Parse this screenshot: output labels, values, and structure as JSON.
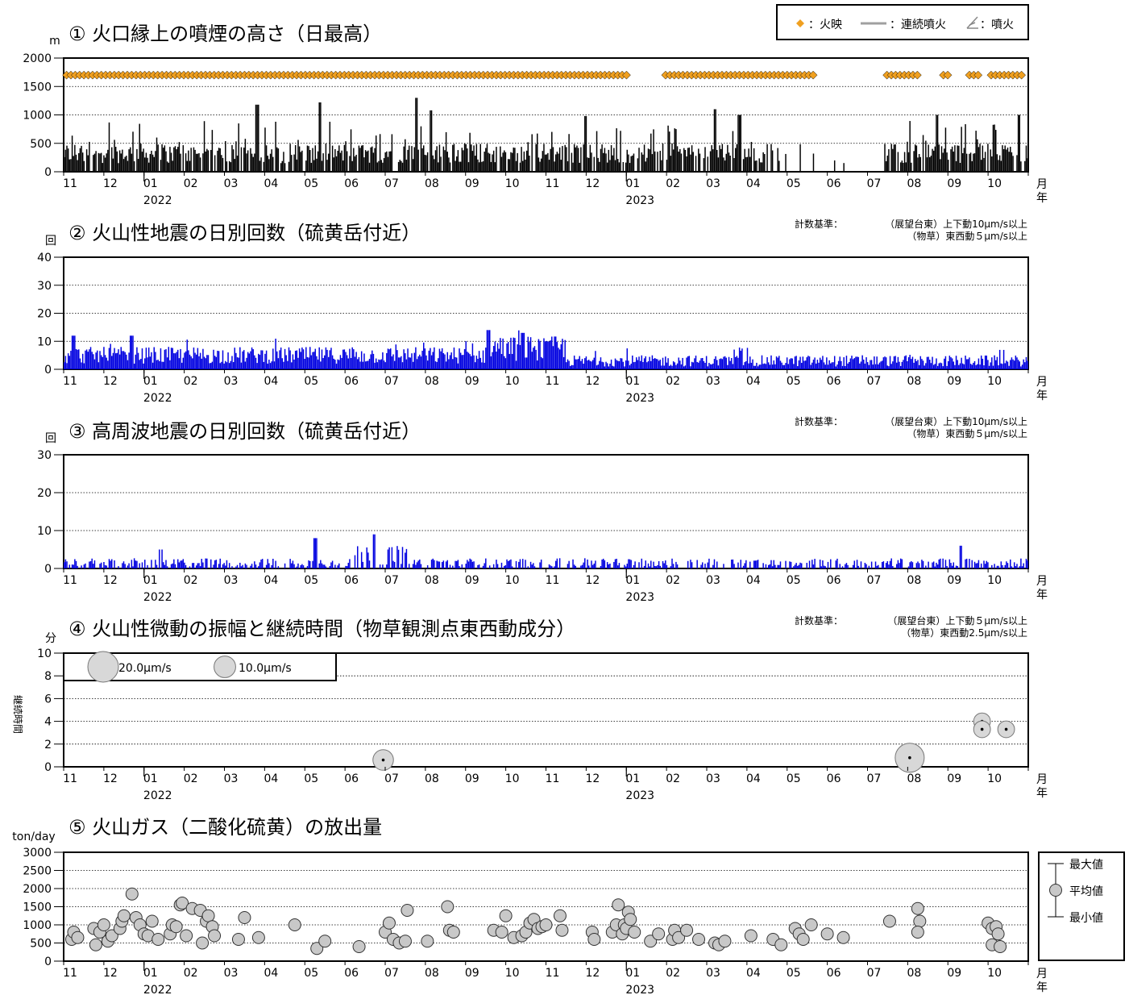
{
  "months": [
    "11",
    "12",
    "01",
    "02",
    "03",
    "04",
    "05",
    "06",
    "07",
    "08",
    "09",
    "10",
    "11",
    "12",
    "01",
    "02",
    "03",
    "04",
    "05",
    "06",
    "07",
    "08",
    "09",
    "10"
  ],
  "year_labels": [
    {
      "label": "2022",
      "month_index": 2
    },
    {
      "label": "2023",
      "month_index": 14
    }
  ],
  "axis_suffix": {
    "month": "月",
    "year": "年"
  },
  "legend1": {
    "glow": "：火映",
    "continuous": "：連続噴火",
    "eruption": "：噴火",
    "glow_color": "#f0a020",
    "continuous_color": "#a0a0a0"
  },
  "criteria": {
    "p2": {
      "prefix": "計数基準：",
      "line1": "（展望台東）上下動10μm/s以上",
      "line2": "（物草）東西動５μm/s以上"
    },
    "p3": {
      "prefix": "計数基準：",
      "line1": "（展望台東）上下動10μm/s以上",
      "line2": "（物草）東西動５μm/s以上"
    },
    "p4": {
      "prefix": "計数基準：",
      "line1": "（展望台東）上下動５μm/s以上",
      "line2": "（物草）東西動2.5μm/s以上"
    }
  },
  "chart_data": [
    {
      "panel": 1,
      "type": "bar",
      "title": "① 火口縁上の噴煙の高さ（日最高）",
      "ylabel": "m",
      "ylim": [
        0,
        2000
      ],
      "yticks": [
        0,
        500,
        1000,
        1500,
        2000
      ],
      "color": "#000000",
      "glow_marker_y": 1700,
      "glow_gaps": [
        [
          0.585,
          0.62
        ],
        [
          0.78,
          0.85
        ],
        [
          0.885,
          0.91
        ],
        [
          0.92,
          0.935
        ],
        [
          0.95,
          0.96
        ]
      ],
      "bar_gap": [
        0.735,
        0.85
      ],
      "peaks": [
        {
          "x": 0.2,
          "y": 1180
        },
        {
          "x": 0.265,
          "y": 1220
        },
        {
          "x": 0.365,
          "y": 1300
        },
        {
          "x": 0.38,
          "y": 1080
        },
        {
          "x": 0.54,
          "y": 980
        },
        {
          "x": 0.7,
          "y": 1000
        },
        {
          "x": 0.675,
          "y": 1100
        },
        {
          "x": 0.905,
          "y": 1000
        },
        {
          "x": 0.99,
          "y": 1000
        }
      ]
    },
    {
      "panel": 2,
      "type": "bar",
      "title": "② 火山性地震の日別回数（硫黄岳付近）",
      "ylabel": "回",
      "ylim": [
        0,
        40
      ],
      "yticks": [
        0,
        10,
        20,
        30,
        40
      ],
      "color": "#0000e0",
      "peaks": [
        {
          "x": 0.44,
          "y": 14
        },
        {
          "x": 0.475,
          "y": 13
        },
        {
          "x": 0.5,
          "y": 10
        },
        {
          "x": 0.01,
          "y": 12
        },
        {
          "x": 0.07,
          "y": 12
        }
      ]
    },
    {
      "panel": 3,
      "type": "bar",
      "title": "③ 高周波地震の日別回数（硫黄岳付近）",
      "ylabel": "回",
      "ylim": [
        0,
        30
      ],
      "yticks": [
        0,
        10,
        20,
        30
      ],
      "color": "#0000e0",
      "peaks": [
        {
          "x": 0.26,
          "y": 8
        },
        {
          "x": 0.32,
          "y": 9
        },
        {
          "x": 0.1,
          "y": 5
        },
        {
          "x": 0.93,
          "y": 6
        }
      ]
    },
    {
      "panel": 4,
      "type": "scatter",
      "title": "④ 火山性微動の振幅と継続時間（物草観測点東西動成分）",
      "ylabel": "分",
      "ylabel_side": "継続時間",
      "ylim": [
        0,
        10
      ],
      "yticks": [
        0,
        2,
        4,
        6,
        8,
        10
      ],
      "legend": [
        {
          "label": "20.0μm/s",
          "amp": 20.0
        },
        {
          "label": "10.0μm/s",
          "amp": 10.0
        }
      ],
      "points": [
        {
          "month_pos": 7.95,
          "y": 0.6,
          "amp": 9.0
        },
        {
          "month_pos": 21.05,
          "y": 0.8,
          "amp": 18.0
        },
        {
          "month_pos": 22.85,
          "y": 4.0,
          "amp": 6.0
        },
        {
          "month_pos": 22.85,
          "y": 3.3,
          "amp": 6.0
        },
        {
          "month_pos": 23.45,
          "y": 3.3,
          "amp": 6.0
        }
      ]
    },
    {
      "panel": 5,
      "type": "scatter",
      "title": "⑤ 火山ガス（二酸化硫黄）の放出量",
      "ylabel": "ton/day",
      "ylim": [
        0,
        3000
      ],
      "yticks": [
        0,
        500,
        1000,
        1500,
        2000,
        2500,
        3000
      ],
      "legend": {
        "max": "最大値",
        "mean": "平均値",
        "min": "最小値"
      },
      "points": [
        {
          "m": 0.2,
          "v": 600
        },
        {
          "m": 0.25,
          "v": 800
        },
        {
          "m": 0.35,
          "v": 650
        },
        {
          "m": 0.75,
          "v": 900
        },
        {
          "m": 0.8,
          "v": 450
        },
        {
          "m": 0.9,
          "v": 800
        },
        {
          "m": 1.0,
          "v": 1000
        },
        {
          "m": 1.1,
          "v": 550
        },
        {
          "m": 1.2,
          "v": 700
        },
        {
          "m": 1.4,
          "v": 900
        },
        {
          "m": 1.45,
          "v": 1100
        },
        {
          "m": 1.5,
          "v": 1250
        },
        {
          "m": 1.7,
          "v": 1850
        },
        {
          "m": 1.8,
          "v": 1200
        },
        {
          "m": 1.9,
          "v": 1000
        },
        {
          "m": 2.0,
          "v": 750
        },
        {
          "m": 2.1,
          "v": 700
        },
        {
          "m": 2.2,
          "v": 1100
        },
        {
          "m": 2.35,
          "v": 600
        },
        {
          "m": 2.65,
          "v": 750
        },
        {
          "m": 2.7,
          "v": 1000
        },
        {
          "m": 2.8,
          "v": 950
        },
        {
          "m": 2.9,
          "v": 1550
        },
        {
          "m": 2.95,
          "v": 1600
        },
        {
          "m": 3.05,
          "v": 700
        },
        {
          "m": 3.2,
          "v": 1450
        },
        {
          "m": 3.4,
          "v": 1400
        },
        {
          "m": 3.45,
          "v": 500
        },
        {
          "m": 3.55,
          "v": 1100
        },
        {
          "m": 3.6,
          "v": 1250
        },
        {
          "m": 3.7,
          "v": 950
        },
        {
          "m": 3.75,
          "v": 700
        },
        {
          "m": 4.35,
          "v": 600
        },
        {
          "m": 4.5,
          "v": 1200
        },
        {
          "m": 4.85,
          "v": 650
        },
        {
          "m": 5.75,
          "v": 1000
        },
        {
          "m": 6.3,
          "v": 350
        },
        {
          "m": 6.5,
          "v": 550
        },
        {
          "m": 7.35,
          "v": 400
        },
        {
          "m": 8.0,
          "v": 800
        },
        {
          "m": 8.1,
          "v": 1050
        },
        {
          "m": 8.2,
          "v": 600
        },
        {
          "m": 8.35,
          "v": 500
        },
        {
          "m": 8.5,
          "v": 550
        },
        {
          "m": 8.55,
          "v": 1400
        },
        {
          "m": 9.05,
          "v": 550
        },
        {
          "m": 9.55,
          "v": 1500
        },
        {
          "m": 9.6,
          "v": 850
        },
        {
          "m": 9.7,
          "v": 800
        },
        {
          "m": 10.7,
          "v": 850
        },
        {
          "m": 10.9,
          "v": 800
        },
        {
          "m": 11.0,
          "v": 1250
        },
        {
          "m": 11.2,
          "v": 650
        },
        {
          "m": 11.4,
          "v": 700
        },
        {
          "m": 11.5,
          "v": 800
        },
        {
          "m": 11.6,
          "v": 1050
        },
        {
          "m": 11.7,
          "v": 1150
        },
        {
          "m": 11.8,
          "v": 900
        },
        {
          "m": 11.9,
          "v": 950
        },
        {
          "m": 12.0,
          "v": 1000
        },
        {
          "m": 12.35,
          "v": 1250
        },
        {
          "m": 12.4,
          "v": 850
        },
        {
          "m": 13.15,
          "v": 800
        },
        {
          "m": 13.2,
          "v": 600
        },
        {
          "m": 13.65,
          "v": 800
        },
        {
          "m": 13.75,
          "v": 1000
        },
        {
          "m": 13.8,
          "v": 1550
        },
        {
          "m": 13.9,
          "v": 750
        },
        {
          "m": 13.95,
          "v": 1000
        },
        {
          "m": 14.0,
          "v": 900
        },
        {
          "m": 14.05,
          "v": 1350
        },
        {
          "m": 14.1,
          "v": 1150
        },
        {
          "m": 14.2,
          "v": 800
        },
        {
          "m": 14.6,
          "v": 550
        },
        {
          "m": 14.8,
          "v": 750
        },
        {
          "m": 15.15,
          "v": 600
        },
        {
          "m": 15.2,
          "v": 850
        },
        {
          "m": 15.3,
          "v": 650
        },
        {
          "m": 15.5,
          "v": 850
        },
        {
          "m": 15.8,
          "v": 600
        },
        {
          "m": 16.2,
          "v": 500
        },
        {
          "m": 16.3,
          "v": 450
        },
        {
          "m": 16.45,
          "v": 550
        },
        {
          "m": 17.1,
          "v": 700
        },
        {
          "m": 17.65,
          "v": 600
        },
        {
          "m": 17.85,
          "v": 450
        },
        {
          "m": 18.2,
          "v": 900
        },
        {
          "m": 18.3,
          "v": 750
        },
        {
          "m": 18.4,
          "v": 600
        },
        {
          "m": 18.6,
          "v": 1000
        },
        {
          "m": 19.0,
          "v": 750
        },
        {
          "m": 19.4,
          "v": 650
        },
        {
          "m": 20.55,
          "v": 1100
        },
        {
          "m": 21.25,
          "v": 1450
        },
        {
          "m": 21.3,
          "v": 1100
        },
        {
          "m": 21.25,
          "v": 800
        },
        {
          "m": 23.0,
          "v": 1050
        },
        {
          "m": 23.1,
          "v": 900
        },
        {
          "m": 23.2,
          "v": 950
        },
        {
          "m": 23.25,
          "v": 750
        },
        {
          "m": 23.1,
          "v": 450
        },
        {
          "m": 23.3,
          "v": 400
        }
      ]
    }
  ]
}
